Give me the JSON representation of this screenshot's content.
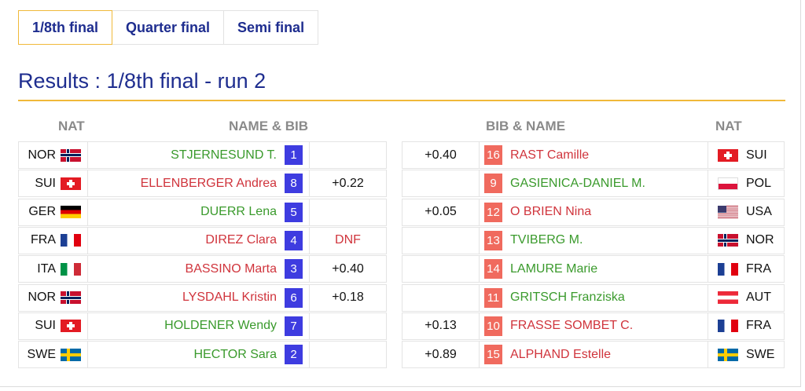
{
  "tabs": [
    {
      "label": "1/8th final",
      "active": true
    },
    {
      "label": "Quarter final",
      "active": false
    },
    {
      "label": "Semi final",
      "active": false
    }
  ],
  "title": "Results : 1/8th final - run 2",
  "headers": {
    "nat_left": "NAT",
    "name_bib": "NAME & BIB",
    "bib_name": "BIB & NAME",
    "nat_right": "NAT"
  },
  "rows": [
    {
      "left": {
        "nat": "NOR",
        "name": "STJERNESUND T.",
        "bib": "1",
        "diff": "",
        "win": true
      },
      "right": {
        "nat": "SUI",
        "name": "RAST Camille",
        "bib": "16",
        "diff": "+0.40",
        "win": false
      }
    },
    {
      "left": {
        "nat": "SUI",
        "name": "ELLENBERGER Andrea",
        "bib": "8",
        "diff": "+0.22",
        "win": false
      },
      "right": {
        "nat": "POL",
        "name": "GASIENICA-DANIEL M.",
        "bib": "9",
        "diff": "",
        "win": true
      }
    },
    {
      "left": {
        "nat": "GER",
        "name": "DUERR Lena",
        "bib": "5",
        "diff": "",
        "win": true
      },
      "right": {
        "nat": "USA",
        "name": "O BRIEN Nina",
        "bib": "12",
        "diff": "+0.05",
        "win": false
      }
    },
    {
      "left": {
        "nat": "FRA",
        "name": "DIREZ Clara",
        "bib": "4",
        "diff": "DNF",
        "win": false
      },
      "right": {
        "nat": "NOR",
        "name": "TVIBERG M.",
        "bib": "13",
        "diff": "",
        "win": true
      }
    },
    {
      "left": {
        "nat": "ITA",
        "name": "BASSINO Marta",
        "bib": "3",
        "diff": "+0.40",
        "win": false
      },
      "right": {
        "nat": "FRA",
        "name": "LAMURE Marie",
        "bib": "14",
        "diff": "",
        "win": true
      }
    },
    {
      "left": {
        "nat": "NOR",
        "name": "LYSDAHL Kristin",
        "bib": "6",
        "diff": "+0.18",
        "win": false
      },
      "right": {
        "nat": "AUT",
        "name": "GRITSCH Franziska",
        "bib": "11",
        "diff": "",
        "win": true
      }
    },
    {
      "left": {
        "nat": "SUI",
        "name": "HOLDENER Wendy",
        "bib": "7",
        "diff": "",
        "win": true
      },
      "right": {
        "nat": "FRA",
        "name": "FRASSE SOMBET C.",
        "bib": "10",
        "diff": "+0.13",
        "win": false
      }
    },
    {
      "left": {
        "nat": "SWE",
        "name": "HECTOR Sara",
        "bib": "2",
        "diff": "",
        "win": true
      },
      "right": {
        "nat": "SWE",
        "name": "ALPHAND Estelle",
        "bib": "15",
        "diff": "+0.89",
        "win": false
      }
    }
  ],
  "colors": {
    "title": "#1e2d8f",
    "accent_rule": "#f0b93a",
    "winner": "#3a9a2c",
    "loser": "#d0343c",
    "bib_left": "#3e3ce0",
    "bib_right": "#f06a5e",
    "header": "#8a8a8a"
  }
}
